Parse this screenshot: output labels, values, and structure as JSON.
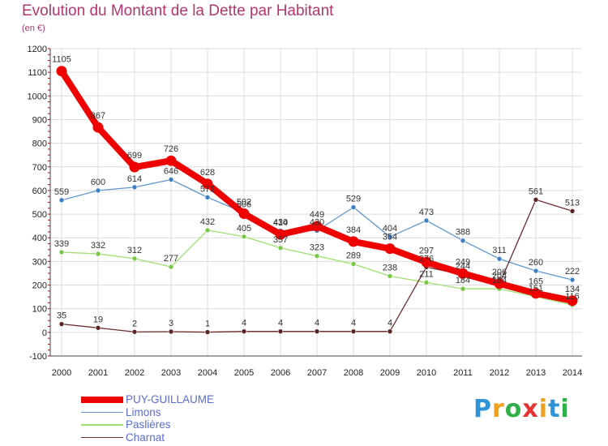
{
  "chart_data": {
    "type": "line",
    "title": "Evolution du Montant de la Dette par Habitant",
    "subtitle": "(en €)",
    "x": [
      "2000",
      "2001",
      "2002",
      "2003",
      "2004",
      "2005",
      "2006",
      "2007",
      "2008",
      "2009",
      "2010",
      "2011",
      "2012",
      "2013",
      "2014"
    ],
    "ylim": [
      -100,
      1200
    ],
    "yticks": [
      -100,
      0,
      100,
      200,
      300,
      400,
      500,
      600,
      700,
      800,
      900,
      1000,
      1100,
      1200
    ],
    "grid": true,
    "legend_position": "bottom-left",
    "series": [
      {
        "name": "PUY-GUILLAUME",
        "color": "#ee0000",
        "marker_color": "#cc0000",
        "width": 8,
        "values": [
          1105,
          867,
          699,
          726,
          628,
          502,
          414,
          449,
          384,
          354,
          297,
          249,
          206,
          165,
          134
        ]
      },
      {
        "name": "Limons",
        "color": "#5f97cc",
        "marker_color": "#3b7fc4",
        "width": 1.3,
        "values": [
          559,
          600,
          614,
          646,
          571,
          506,
          430,
          430,
          529,
          404,
          473,
          388,
          311,
          260,
          222
        ]
      },
      {
        "name": "Paslières",
        "color": "#9ddf71",
        "marker_color": "#78c846",
        "width": 1.3,
        "values": [
          339,
          332,
          312,
          277,
          432,
          405,
          357,
          323,
          289,
          238,
          211,
          184,
          184,
          151,
          116
        ]
      },
      {
        "name": "Charnat",
        "color": "#6b2d2d",
        "marker_color": "#5a2424",
        "width": 1.3,
        "values": [
          35,
          19,
          2,
          3,
          1,
          4,
          4,
          4,
          4,
          4,
          276,
          244,
          204,
          561,
          513
        ]
      }
    ]
  },
  "logo": {
    "letters": [
      "P",
      "r",
      "o",
      "x",
      "i",
      "t",
      "i"
    ],
    "colors": [
      "#2f95d8",
      "#f0a020",
      "#2fb04a",
      "#e63232",
      "#f0a020",
      "#2f95d8",
      "#2fb04a"
    ]
  }
}
